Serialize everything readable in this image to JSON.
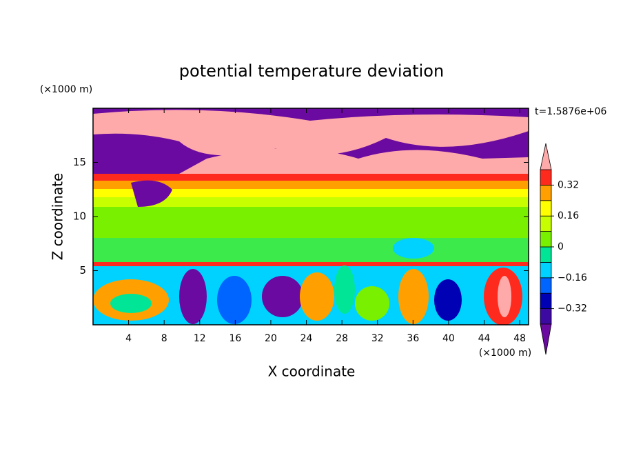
{
  "chart_data": {
    "type": "contour",
    "title": "potential temperature deviation",
    "xlabel": "X coordinate",
    "ylabel": "Z coordinate",
    "x_unit": "(×1000 m)",
    "y_unit": "(×1000 m)",
    "annotation": "t=1.5876e+06",
    "xlim": [
      0,
      49
    ],
    "xticks": [
      4,
      8,
      12,
      16,
      20,
      24,
      28,
      32,
      36,
      40,
      44,
      48
    ],
    "ylim": [
      0,
      20
    ],
    "yticks": [
      5,
      10,
      15
    ],
    "colorbar": {
      "levels": [
        -0.4,
        -0.32,
        -0.24,
        -0.16,
        -0.08,
        0,
        0.08,
        0.16,
        0.24,
        0.32,
        0.4
      ],
      "colors": [
        "#3c0aa0",
        "#0000b4",
        "#0064ff",
        "#00d2ff",
        "#00e696",
        "#78f000",
        "#c8ff00",
        "#ffff00",
        "#ffa000",
        "#ff2a1e"
      ],
      "under_color": "#6a0aa0",
      "over_color": "#ffaaaa",
      "ticks": [
        {
          "value": -0.32,
          "label": "−0.32"
        },
        {
          "value": -0.16,
          "label": "−0.16"
        },
        0,
        0.16,
        0.32
      ]
    }
  }
}
